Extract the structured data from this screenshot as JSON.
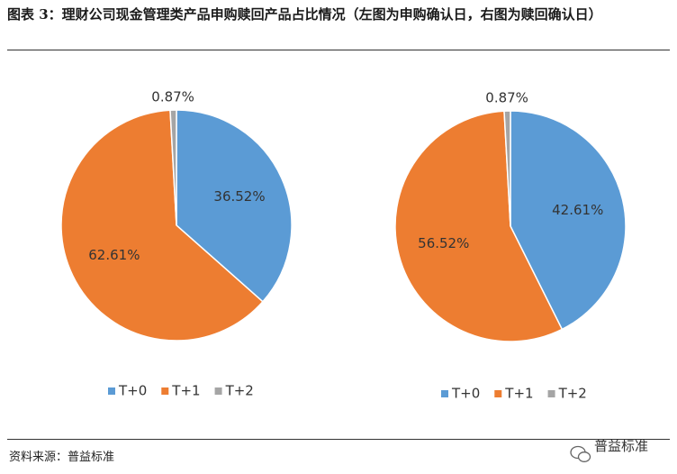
{
  "header": {
    "title": "图表 3：理财公司现金管理类产品申购赎回产品占比情况（左图为申购确认日，右图为赎回确认日）"
  },
  "footer": {
    "source": "资料来源：普益标准",
    "watermark": "普益标准"
  },
  "chart_data": [
    {
      "type": "pie",
      "categories": [
        "T+0",
        "T+1",
        "T+2"
      ],
      "values": [
        36.52,
        62.61,
        0.87
      ],
      "value_labels": [
        "36.52%",
        "62.61%",
        "0.87%"
      ],
      "colors": [
        "#5b9bd5",
        "#ed7d31",
        "#a5a5a5"
      ],
      "legend": "bottom"
    },
    {
      "type": "pie",
      "categories": [
        "T+0",
        "T+1",
        "T+2"
      ],
      "values": [
        42.61,
        56.52,
        0.87
      ],
      "value_labels": [
        "42.61%",
        "56.52%",
        "0.87%"
      ],
      "colors": [
        "#5b9bd5",
        "#ed7d31",
        "#a5a5a5"
      ],
      "legend": "bottom"
    }
  ]
}
